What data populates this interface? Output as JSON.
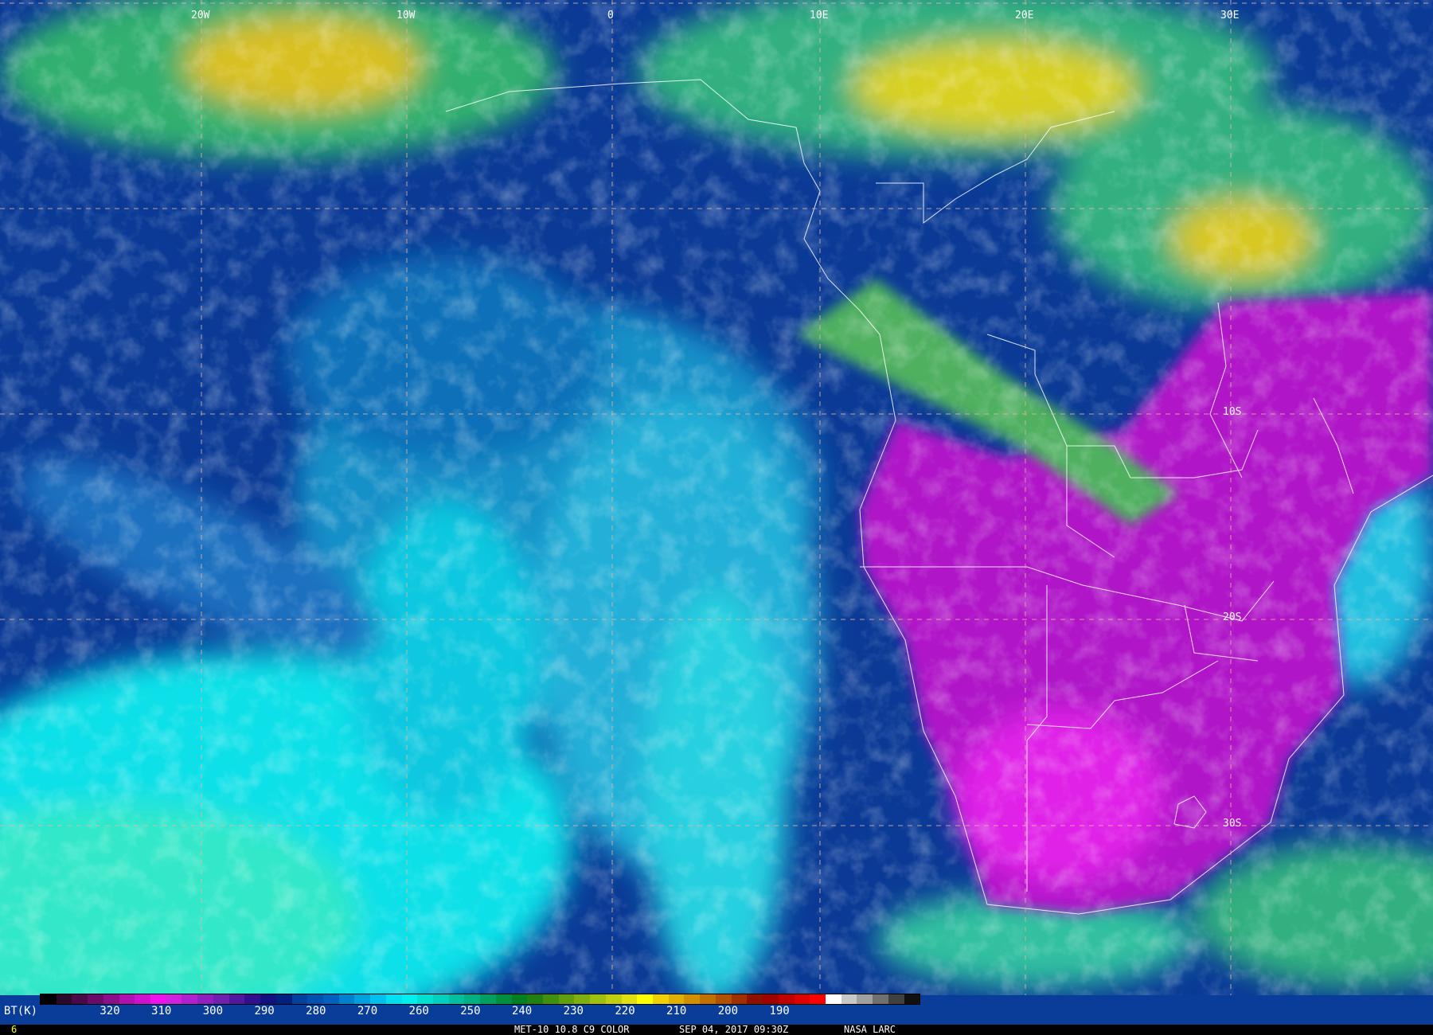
{
  "lon_labels": [
    "20W",
    "10W",
    "0",
    "10E",
    "20E",
    "30E"
  ],
  "lat_labels": [
    "10S",
    "20S",
    "30S"
  ],
  "colorbar": {
    "label": "BT(K)",
    "ticks": [
      "320",
      "310",
      "300",
      "290",
      "280",
      "270",
      "260",
      "250",
      "240",
      "230",
      "220",
      "210",
      "200",
      "190"
    ],
    "colors": [
      "#000000",
      "#2a0a2a",
      "#4a0a4a",
      "#6a0a6a",
      "#8a108a",
      "#b010b0",
      "#d010d0",
      "#f010f0",
      "#d020e0",
      "#b020d0",
      "#9020c0",
      "#7020b0",
      "#5018a0",
      "#301090",
      "#101080",
      "#002080",
      "#0040a0",
      "#0050b0",
      "#0060c0",
      "#0080d0",
      "#00a0e0",
      "#00c0f0",
      "#00e0f0",
      "#00f0f0",
      "#00e0d0",
      "#00d0c0",
      "#00c0a0",
      "#00b080",
      "#00a060",
      "#009040",
      "#008020",
      "#208010",
      "#409010",
      "#60a010",
      "#80b010",
      "#a0c010",
      "#c0d010",
      "#e0e010",
      "#ffff00",
      "#f0d000",
      "#e0b000",
      "#d09000",
      "#c07000",
      "#b05000",
      "#a03000",
      "#901000",
      "#a00000",
      "#c00000",
      "#e00000",
      "#ff0000",
      "#ffffff",
      "#c8c8c8",
      "#a0a0a0",
      "#707070",
      "#404040",
      "#101010"
    ]
  },
  "footer": {
    "frame": "6",
    "product": "MET-10 10.8 C9 COLOR",
    "datetime": "SEP 04, 2017 09:30Z",
    "source": "NASA LARC"
  }
}
